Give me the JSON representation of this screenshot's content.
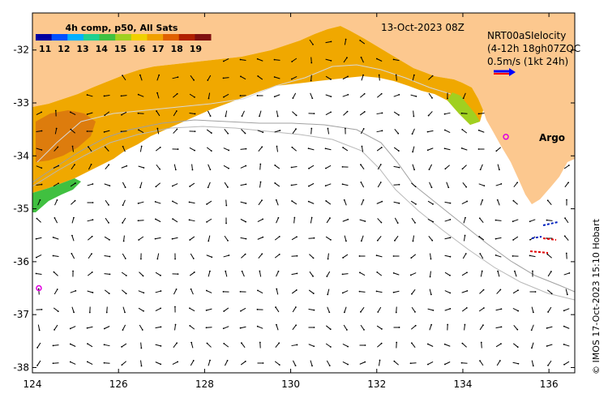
{
  "map": {
    "lon_min": 124,
    "lon_max": 136.6,
    "lat_min": -38.1,
    "lat_max": -31.3,
    "lon_ticks": [
      124,
      126,
      128,
      130,
      132,
      134,
      136
    ],
    "lon_tick_labels": [
      "124",
      "126",
      "128",
      "130",
      "132",
      "134",
      "136"
    ],
    "lat_ticks": [
      -32,
      -33,
      -34,
      -35,
      -36,
      -37,
      -38
    ],
    "lat_tick_labels": [
      "-32",
      "-33",
      "-34",
      "-35",
      "-36",
      "-37",
      "-38"
    ],
    "land_color": "#fcc88f",
    "ocean_color": "#ffffff"
  },
  "colorbar": {
    "title": "4h comp, p50, All Sats",
    "tick_labels": [
      "11",
      "12",
      "13",
      "14",
      "15",
      "16",
      "17",
      "18",
      "19"
    ],
    "min": 10.5,
    "max": 19.8,
    "colors": [
      "#0000a0",
      "#0050ff",
      "#00b0ff",
      "#20d090",
      "#40c040",
      "#a0d020",
      "#f0d000",
      "#f0a000",
      "#e06000",
      "#b02000",
      "#801010"
    ]
  },
  "header": {
    "date": "13-Oct-2023 08Z",
    "legend_line1": "NRT00aSIelocity",
    "legend_line2": "(4-12h 18gh07ZQC",
    "legend_line3": "0.5m/s (1kt 24h)"
  },
  "argo": {
    "label": "Argo",
    "marker_color": "#e000e0",
    "floats": [
      {
        "lon": 135.0,
        "lat": -33.64
      },
      {
        "lon": 124.15,
        "lat": -36.5
      }
    ]
  },
  "credit": "© IMOS 17-Oct-2023 15:10 Hobart"
}
